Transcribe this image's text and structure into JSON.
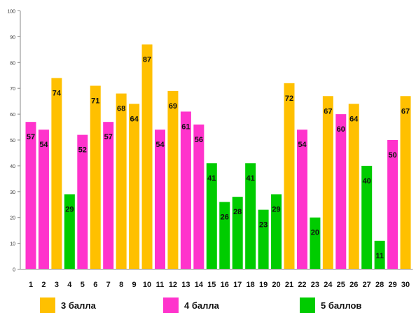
{
  "chart_data": {
    "type": "bar",
    "title": "",
    "xlabel": "",
    "ylabel": "",
    "ylim": [
      0,
      100
    ],
    "y_ticks": [
      0,
      10,
      20,
      30,
      40,
      50,
      60,
      70,
      80,
      90,
      100
    ],
    "grid": false,
    "legend_position": "bottom",
    "categories": [
      "1",
      "2",
      "3",
      "4",
      "5",
      "6",
      "7",
      "8",
      "9",
      "10",
      "11",
      "12",
      "13",
      "14",
      "15",
      "16",
      "17",
      "18",
      "19",
      "20",
      "21",
      "22",
      "23",
      "24",
      "25",
      "26",
      "27",
      "28",
      "29",
      "30"
    ],
    "values": [
      57,
      54,
      74,
      29,
      52,
      71,
      57,
      68,
      64,
      87,
      54,
      69,
      61,
      56,
      41,
      26,
      28,
      41,
      23,
      29,
      72,
      54,
      20,
      67,
      60,
      64,
      40,
      11,
      50,
      67
    ],
    "value_group": [
      4,
      4,
      3,
      5,
      4,
      3,
      4,
      3,
      3,
      3,
      4,
      3,
      4,
      4,
      5,
      5,
      5,
      5,
      5,
      5,
      3,
      4,
      5,
      3,
      4,
      3,
      5,
      5,
      4,
      3
    ],
    "groups": [
      {
        "id": 3,
        "label": "3 балла",
        "color": "#FFC000"
      },
      {
        "id": 4,
        "label": "4 балла",
        "color": "#FF33CC"
      },
      {
        "id": 5,
        "label": "5 баллов",
        "color": "#00CC00"
      }
    ]
  }
}
